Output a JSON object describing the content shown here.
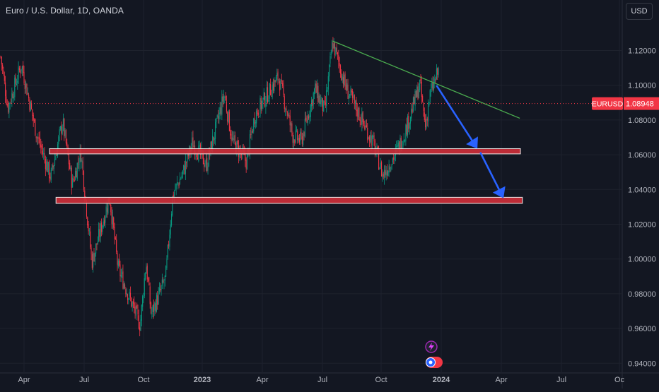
{
  "header": {
    "symbol_title": "Euro / U.S. Dollar, 1D, OANDA",
    "currency_label": "USD"
  },
  "price_badge": {
    "symbol": "EURUSD",
    "price": "1.08948",
    "value": 1.08948,
    "color": "#f23645"
  },
  "colors": {
    "background": "#131722",
    "up_candle": "#089981",
    "down_candle": "#f23645",
    "zone_fill": "#cc2f3a",
    "zone_border": "#e8e8e8",
    "trendline": "#4caf50",
    "arrow": "#2962ff"
  },
  "icons": [
    "lightning-icon",
    "crypto-badge-icon"
  ],
  "chart_data": {
    "type": "candlestick",
    "title": "Euro / U.S. Dollar, 1D, OANDA",
    "ylim": [
      0.9375,
      1.1355
    ],
    "y_ticks": [
      "1.12000",
      "1.10000",
      "1.08000",
      "1.06000",
      "1.04000",
      "1.02000",
      "1.00000",
      "0.98000",
      "0.96000",
      "0.94000"
    ],
    "x_ticks": [
      "Apr",
      "Jul",
      "Oct",
      "2023",
      "Apr",
      "Jul",
      "Oct",
      "2024",
      "Apr",
      "Jul",
      "Oc"
    ],
    "grid": true,
    "price_path": {
      "dates": [
        "2022-02-20",
        "2022-03-07",
        "2022-03-28",
        "2022-04-20",
        "2022-05-12",
        "2022-05-30",
        "2022-06-14",
        "2022-06-27",
        "2022-07-14",
        "2022-08-10",
        "2022-08-23",
        "2022-09-26",
        "2022-10-05",
        "2022-10-13",
        "2022-11-04",
        "2022-11-15",
        "2022-12-01",
        "2022-12-15",
        "2023-01-06",
        "2023-02-02",
        "2023-02-14",
        "2023-03-08",
        "2023-03-21",
        "2023-04-26",
        "2023-05-18",
        "2023-05-31",
        "2023-06-21",
        "2023-07-06",
        "2023-07-18",
        "2023-08-07",
        "2023-08-28",
        "2023-09-19",
        "2023-10-03",
        "2023-10-23",
        "2023-11-06",
        "2023-11-29",
        "2023-12-07",
        "2023-12-14",
        "2023-12-28"
      ],
      "values": [
        1.128,
        1.087,
        1.112,
        1.072,
        1.047,
        1.079,
        1.043,
        1.062,
        0.998,
        1.036,
        0.995,
        0.962,
        0.998,
        0.968,
        0.989,
        1.037,
        1.05,
        1.067,
        1.054,
        1.095,
        1.068,
        1.056,
        1.083,
        1.105,
        1.071,
        1.068,
        1.098,
        1.085,
        1.125,
        1.099,
        1.083,
        1.066,
        1.048,
        1.061,
        1.073,
        1.101,
        1.076,
        1.094,
        1.109
      ]
    },
    "annotations": {
      "support_zones": [
        {
          "from": "2022-05-10",
          "to": "2024-05-01",
          "low": 1.0605,
          "high": 1.0635
        },
        {
          "from": "2022-05-20",
          "to": "2024-05-04",
          "low": 1.032,
          "high": 1.0355
        }
      ],
      "trendline": {
        "from": [
          "2023-07-18",
          1.1255
        ],
        "to": [
          "2024-04-30",
          1.081
        ]
      },
      "arrows": [
        {
          "from": [
            "2023-12-25",
            1.0995
          ],
          "to": [
            "2024-02-25",
            1.0635
          ]
        },
        {
          "from": [
            "2024-03-01",
            1.061
          ],
          "to": [
            "2024-04-05",
            1.035
          ]
        }
      ]
    }
  }
}
